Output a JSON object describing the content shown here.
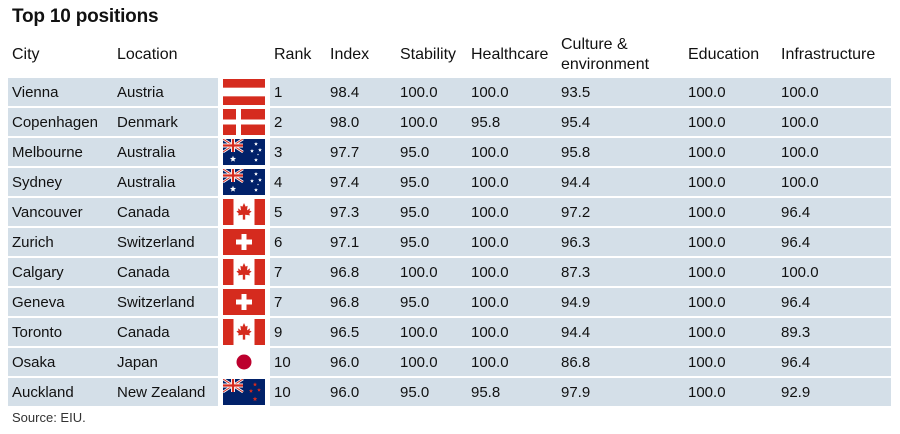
{
  "title": "Top 10 positions",
  "source": "Source: EIU.",
  "colors": {
    "row_fill": "#d4dfe8",
    "flag_red": "#d52b1e",
    "japan_red": "#bc002d",
    "aus_blue": "#012169"
  },
  "chart_data": {
    "type": "table",
    "title": "Top 10 positions",
    "columns": [
      "City",
      "Location",
      "",
      "Rank",
      "Index",
      "Stability",
      "Healthcare",
      "Culture & environment",
      "Education",
      "Infrastructure"
    ],
    "rows": [
      {
        "city": "Vienna",
        "location": "Austria",
        "flag": "austria",
        "rank": "1",
        "index": "98.4",
        "stability": "100.0",
        "healthcare": "100.0",
        "culture": "93.5",
        "education": "100.0",
        "infrastructure": "100.0"
      },
      {
        "city": "Copenhagen",
        "location": "Denmark",
        "flag": "denmark",
        "rank": "2",
        "index": "98.0",
        "stability": "100.0",
        "healthcare": "95.8",
        "culture": "95.4",
        "education": "100.0",
        "infrastructure": "100.0"
      },
      {
        "city": "Melbourne",
        "location": "Australia",
        "flag": "australia",
        "rank": "3",
        "index": "97.7",
        "stability": "95.0",
        "healthcare": "100.0",
        "culture": "95.8",
        "education": "100.0",
        "infrastructure": "100.0"
      },
      {
        "city": "Sydney",
        "location": "Australia",
        "flag": "australia",
        "rank": "4",
        "index": "97.4",
        "stability": "95.0",
        "healthcare": "100.0",
        "culture": "94.4",
        "education": "100.0",
        "infrastructure": "100.0"
      },
      {
        "city": "Vancouver",
        "location": "Canada",
        "flag": "canada",
        "rank": "5",
        "index": "97.3",
        "stability": "95.0",
        "healthcare": "100.0",
        "culture": "97.2",
        "education": "100.0",
        "infrastructure": "96.4"
      },
      {
        "city": "Zurich",
        "location": "Switzerland",
        "flag": "switzerland",
        "rank": "6",
        "index": "97.1",
        "stability": "95.0",
        "healthcare": "100.0",
        "culture": "96.3",
        "education": "100.0",
        "infrastructure": "96.4"
      },
      {
        "city": "Calgary",
        "location": "Canada",
        "flag": "canada",
        "rank": "7",
        "index": "96.8",
        "stability": "100.0",
        "healthcare": "100.0",
        "culture": "87.3",
        "education": "100.0",
        "infrastructure": "100.0"
      },
      {
        "city": "Geneva",
        "location": "Switzerland",
        "flag": "switzerland",
        "rank": "7",
        "index": "96.8",
        "stability": "95.0",
        "healthcare": "100.0",
        "culture": "94.9",
        "education": "100.0",
        "infrastructure": "96.4"
      },
      {
        "city": "Toronto",
        "location": "Canada",
        "flag": "canada",
        "rank": "9",
        "index": "96.5",
        "stability": "100.0",
        "healthcare": "100.0",
        "culture": "94.4",
        "education": "100.0",
        "infrastructure": "89.3"
      },
      {
        "city": "Osaka",
        "location": "Japan",
        "flag": "japan",
        "rank": "10",
        "index": "96.0",
        "stability": "100.0",
        "healthcare": "100.0",
        "culture": "86.8",
        "education": "100.0",
        "infrastructure": "96.4"
      },
      {
        "city": "Auckland",
        "location": "New Zealand",
        "flag": "new-zealand",
        "rank": "10",
        "index": "96.0",
        "stability": "95.0",
        "healthcare": "95.8",
        "culture": "97.9",
        "education": "100.0",
        "infrastructure": "92.9"
      }
    ]
  }
}
